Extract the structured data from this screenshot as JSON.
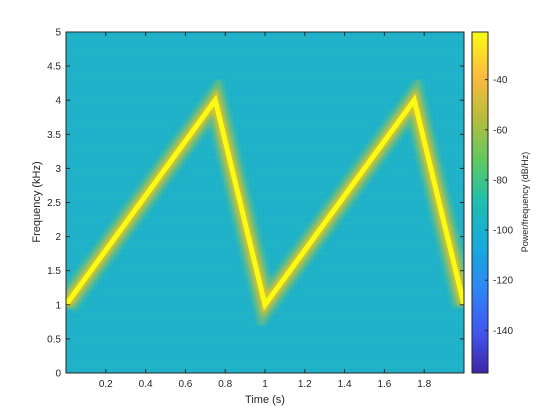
{
  "chart_data": {
    "type": "heatmap",
    "subtype": "spectrogram",
    "xlabel": "Time (s)",
    "ylabel": "Frequency (kHz)",
    "colorbar_label": "Power/frequency (dB/Hz)",
    "xlim": [
      0,
      2
    ],
    "ylim": [
      0,
      5
    ],
    "clim": [
      -157,
      -21
    ],
    "x_ticks": [
      0.2,
      0.4,
      0.6,
      0.8,
      1,
      1.2,
      1.4,
      1.6,
      1.8
    ],
    "x_tick_labels": [
      "0.2",
      "0.4",
      "0.6",
      "0.8",
      "1",
      "1.2",
      "1.4",
      "1.6",
      "1.8"
    ],
    "y_ticks": [
      0,
      0.5,
      1,
      1.5,
      2,
      2.5,
      3,
      3.5,
      4,
      4.5,
      5
    ],
    "y_tick_labels": [
      "0",
      "0.5",
      "1",
      "1.5",
      "2",
      "2.5",
      "3",
      "3.5",
      "4",
      "4.5",
      "5"
    ],
    "colorbar_ticks": [
      -140,
      -120,
      -100,
      -80,
      -60,
      -40
    ],
    "colorbar_tick_labels": [
      "-140",
      "-120",
      "-100",
      "-80",
      "-60",
      "-40"
    ],
    "colormap": "parula",
    "background_level": -95,
    "ridge_level": -25,
    "ridge": {
      "time": [
        0,
        0.75,
        1.0,
        1.75,
        2.0
      ],
      "frequency": [
        1.0,
        4.0,
        1.0,
        4.0,
        1.0
      ]
    },
    "grid": false
  }
}
